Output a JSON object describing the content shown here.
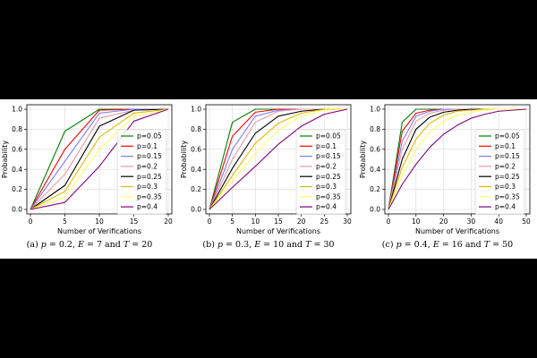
{
  "chart_data": [
    {
      "type": "line",
      "caption": {
        "prefix": "(a) ",
        "p_name": "p",
        "p_value": " = 0.2, ",
        "e_name": "E",
        "e_value": " = 7 and ",
        "t_name": "T",
        "t_value": " = 20"
      },
      "xlabel": "Number of Verifications",
      "ylabel": "Probability",
      "xlim": [
        0,
        20
      ],
      "ylim": [
        0,
        1.0
      ],
      "xticks": [
        0,
        5,
        10,
        15,
        20
      ],
      "yticks": [
        0.0,
        0.2,
        0.4,
        0.6,
        0.8,
        1.0
      ],
      "ytick_labels": [
        "0.0",
        "0.2",
        "0.4",
        "0.6",
        "0.8",
        "1.0"
      ],
      "grid": true,
      "legend_position": "center-right",
      "x": [
        0,
        5,
        10,
        15,
        20
      ],
      "series": [
        {
          "name": "p=0.05",
          "color": "#008000",
          "values": [
            0.0,
            0.78,
            1.0,
            1.0,
            1.0
          ]
        },
        {
          "name": "p=0.1",
          "color": "#ff0000",
          "values": [
            0.0,
            0.6,
            0.99,
            1.0,
            1.0
          ]
        },
        {
          "name": "p=0.15",
          "color": "#7b7bff",
          "values": [
            0.0,
            0.48,
            0.96,
            1.0,
            1.0
          ]
        },
        {
          "name": "p=0.2",
          "color": "#e89aa6",
          "values": [
            0.0,
            0.35,
            0.91,
            0.99,
            1.0
          ]
        },
        {
          "name": "p=0.25",
          "color": "#000000",
          "values": [
            0.0,
            0.24,
            0.83,
            0.99,
            1.0
          ]
        },
        {
          "name": "p=0.3",
          "color": "#e6b800",
          "values": [
            0.0,
            0.18,
            0.72,
            0.96,
            1.0
          ]
        },
        {
          "name": "p=0.35",
          "color": "#ffff66",
          "values": [
            0.0,
            0.12,
            0.6,
            0.93,
            1.0
          ]
        },
        {
          "name": "p=0.4",
          "color": "#800080",
          "values": [
            0.0,
            0.07,
            0.43,
            0.88,
            1.0
          ]
        }
      ]
    },
    {
      "type": "line",
      "caption": {
        "prefix": "(b) ",
        "p_name": "p",
        "p_value": " = 0.3, ",
        "e_name": "E",
        "e_value": " = 10 and ",
        "t_name": "T",
        "t_value": " = 30"
      },
      "xlabel": "Number of Verifications",
      "ylabel": "Probability",
      "xlim": [
        0,
        30
      ],
      "ylim": [
        0,
        1.0
      ],
      "xticks": [
        0,
        5,
        10,
        15,
        20,
        25,
        30
      ],
      "yticks": [
        0.0,
        0.2,
        0.4,
        0.6,
        0.8,
        1.0
      ],
      "ytick_labels": [
        "0.0",
        "0.2",
        "0.4",
        "0.6",
        "0.8",
        "1.0"
      ],
      "grid": true,
      "legend_position": "center-right",
      "x": [
        0,
        5,
        10,
        15,
        20,
        25,
        30
      ],
      "series": [
        {
          "name": "p=0.05",
          "color": "#008000",
          "values": [
            0.0,
            0.87,
            1.0,
            1.0,
            1.0,
            1.0,
            1.0
          ]
        },
        {
          "name": "p=0.1",
          "color": "#ff0000",
          "values": [
            0.0,
            0.73,
            0.97,
            1.0,
            1.0,
            1.0,
            1.0
          ]
        },
        {
          "name": "p=0.15",
          "color": "#7b7bff",
          "values": [
            0.0,
            0.6,
            0.93,
            0.99,
            1.0,
            1.0,
            1.0
          ]
        },
        {
          "name": "p=0.2",
          "color": "#e89aa6",
          "values": [
            0.0,
            0.5,
            0.87,
            0.98,
            1.0,
            1.0,
            1.0
          ]
        },
        {
          "name": "p=0.25",
          "color": "#000000",
          "values": [
            0.0,
            0.41,
            0.76,
            0.93,
            0.98,
            1.0,
            1.0
          ]
        },
        {
          "name": "p=0.3",
          "color": "#e6b800",
          "values": [
            0.0,
            0.34,
            0.66,
            0.86,
            0.96,
            1.0,
            1.0
          ]
        },
        {
          "name": "p=0.35",
          "color": "#ffff66",
          "values": [
            0.0,
            0.28,
            0.56,
            0.79,
            0.93,
            0.99,
            1.0
          ]
        },
        {
          "name": "p=0.4",
          "color": "#800080",
          "values": [
            0.0,
            0.22,
            0.43,
            0.65,
            0.83,
            0.95,
            1.0
          ]
        }
      ]
    },
    {
      "type": "line",
      "caption": {
        "prefix": "(c) ",
        "p_name": "p",
        "p_value": " = 0.4, ",
        "e_name": "E",
        "e_value": " = 16 and ",
        "t_name": "T",
        "t_value": " = 50"
      },
      "xlabel": "Number of Verifications",
      "ylabel": "Probability",
      "xlim": [
        0,
        50
      ],
      "ylim": [
        0,
        1.0
      ],
      "xticks": [
        0,
        10,
        20,
        30,
        40,
        50
      ],
      "yticks": [
        0.0,
        0.2,
        0.4,
        0.6,
        0.8,
        1.0
      ],
      "ytick_labels": [
        "0.0",
        "0.2",
        "0.4",
        "0.6",
        "0.8",
        "1.0"
      ],
      "grid": true,
      "legend_position": "center-right",
      "x": [
        0,
        5,
        10,
        15,
        20,
        25,
        30,
        35,
        40,
        45,
        50
      ],
      "series": [
        {
          "name": "p=0.05",
          "color": "#008000",
          "values": [
            0.0,
            0.87,
            1.0,
            1.0,
            1.0,
            1.0,
            1.0,
            1.0,
            1.0,
            1.0,
            1.0
          ]
        },
        {
          "name": "p=0.1",
          "color": "#ff0000",
          "values": [
            0.0,
            0.78,
            0.96,
            0.99,
            1.0,
            1.0,
            1.0,
            1.0,
            1.0,
            1.0,
            1.0
          ]
        },
        {
          "name": "p=0.15",
          "color": "#7b7bff",
          "values": [
            0.0,
            0.68,
            0.93,
            0.98,
            1.0,
            1.0,
            1.0,
            1.0,
            1.0,
            1.0,
            1.0
          ]
        },
        {
          "name": "p=0.2",
          "color": "#e89aa6",
          "values": [
            0.0,
            0.6,
            0.88,
            0.96,
            0.99,
            1.0,
            1.0,
            1.0,
            1.0,
            1.0,
            1.0
          ]
        },
        {
          "name": "p=0.25",
          "color": "#000000",
          "values": [
            0.0,
            0.5,
            0.8,
            0.92,
            0.97,
            0.99,
            1.0,
            1.0,
            1.0,
            1.0,
            1.0
          ]
        },
        {
          "name": "p=0.3",
          "color": "#e6b800",
          "values": [
            0.0,
            0.42,
            0.7,
            0.86,
            0.94,
            0.98,
            0.99,
            1.0,
            1.0,
            1.0,
            1.0
          ]
        },
        {
          "name": "p=0.35",
          "color": "#ffff66",
          "values": [
            0.0,
            0.34,
            0.6,
            0.77,
            0.88,
            0.94,
            0.97,
            0.99,
            1.0,
            1.0,
            1.0
          ]
        },
        {
          "name": "p=0.4",
          "color": "#800080",
          "values": [
            0.0,
            0.25,
            0.45,
            0.62,
            0.75,
            0.84,
            0.91,
            0.95,
            0.98,
            0.99,
            1.0
          ]
        }
      ]
    }
  ]
}
